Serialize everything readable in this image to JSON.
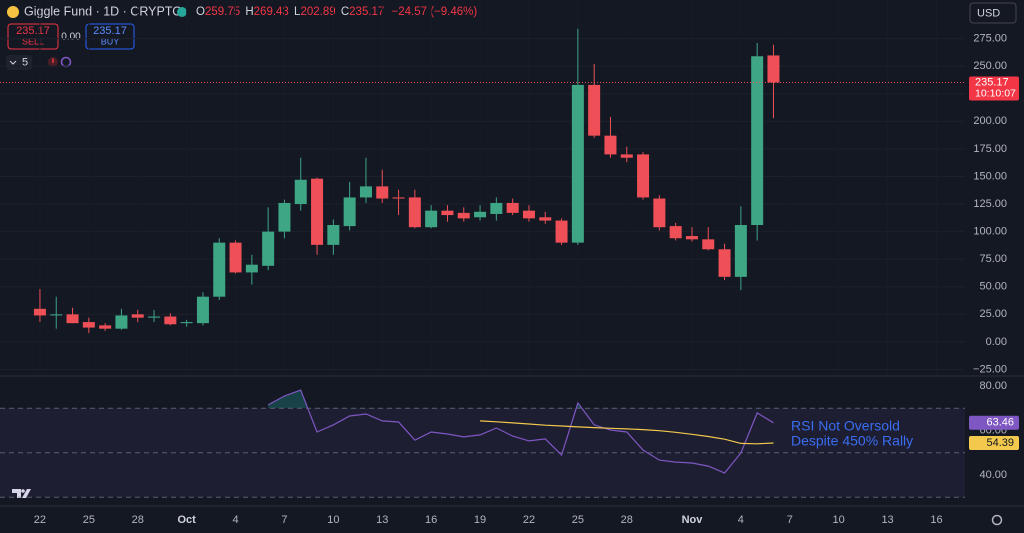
{
  "header": {
    "symbol": "Giggle Fund · 1D · CRYPTO",
    "ohlc": [
      {
        "label": "O",
        "value": "259.75"
      },
      {
        "label": "H",
        "value": "269.43"
      },
      {
        "label": "L",
        "value": "202.89"
      },
      {
        "label": "C",
        "value": "235.17"
      }
    ],
    "change": "−24.57 (−9.46%)"
  },
  "trade": {
    "sell_price": "235.17",
    "sell": "SELL",
    "spread": "0.00",
    "buy_price": "235.17",
    "buy": "BUY"
  },
  "indicators_count": "5",
  "currency": "USD",
  "chart_data": [
    {
      "type": "candlestick",
      "up_color": "#3ea585",
      "down_color": "#ef4f56",
      "grid": true,
      "xlim": [
        -2.45,
        56.75
      ],
      "xticks": [
        {
          "value": 0,
          "label": "22"
        },
        {
          "value": 3,
          "label": "25"
        },
        {
          "value": 6,
          "label": "28"
        },
        {
          "value": 9,
          "label": "Oct"
        },
        {
          "value": 12,
          "label": "4"
        },
        {
          "value": 15,
          "label": "7"
        },
        {
          "value": 18,
          "label": "10"
        },
        {
          "value": 21,
          "label": "13"
        },
        {
          "value": 24,
          "label": "16"
        },
        {
          "value": 27,
          "label": "19"
        },
        {
          "value": 30,
          "label": "22"
        },
        {
          "value": 33,
          "label": "25"
        },
        {
          "value": 36,
          "label": "28"
        },
        {
          "value": 40,
          "label": "Nov"
        },
        {
          "value": 43,
          "label": "4"
        },
        {
          "value": 46,
          "label": "7"
        },
        {
          "value": 49,
          "label": "10"
        },
        {
          "value": 52,
          "label": "13"
        },
        {
          "value": 55,
          "label": "16"
        }
      ],
      "ylim": [
        -30,
        310
      ],
      "yticks": [
        {
          "value": -25,
          "label": "−25.00"
        },
        {
          "value": 0,
          "label": "0.00"
        },
        {
          "value": 25,
          "label": "25.00"
        },
        {
          "value": 50,
          "label": "50.00"
        },
        {
          "value": 75,
          "label": "75.00"
        },
        {
          "value": 100,
          "label": "100.00"
        },
        {
          "value": 125,
          "label": "125.00"
        },
        {
          "value": 150,
          "label": "150.00"
        },
        {
          "value": 175,
          "label": "175.00"
        },
        {
          "value": 200,
          "label": "200.00"
        },
        {
          "value": 225,
          "label": "225.00"
        },
        {
          "value": 250,
          "label": "250.00"
        },
        {
          "value": 275,
          "label": "275.00"
        }
      ],
      "open": [
        30,
        24,
        25,
        18,
        15,
        12,
        25,
        22,
        23,
        17,
        17,
        41,
        90,
        63,
        69,
        100,
        125,
        148,
        88,
        105,
        131,
        141,
        131,
        131,
        104,
        119,
        117,
        113,
        116,
        126,
        119,
        113,
        110,
        90,
        233,
        187,
        170,
        170,
        130,
        105,
        96,
        93,
        84,
        59,
        106,
        259.75
      ],
      "high": [
        48,
        41,
        31,
        22,
        17,
        30,
        29,
        29,
        26,
        20,
        45,
        94,
        92,
        79,
        122,
        129,
        167,
        149,
        111,
        145,
        167,
        156,
        138,
        138,
        124,
        124,
        122,
        124,
        131,
        130,
        124,
        118,
        112,
        284,
        252,
        204,
        177,
        172,
        133,
        108,
        104,
        104,
        89,
        123,
        271,
        269.43
      ],
      "low": [
        18,
        12,
        17,
        8,
        10,
        11,
        18,
        18,
        15,
        14,
        15,
        38,
        62,
        52,
        65,
        94,
        119,
        79,
        79,
        101,
        126,
        126,
        115,
        103,
        103,
        109,
        109,
        110,
        110,
        115,
        109,
        107,
        88,
        88,
        185,
        167,
        163,
        129,
        101,
        92,
        91,
        83,
        56,
        47,
        92,
        202.89
      ],
      "close": [
        24,
        25,
        17,
        13,
        12,
        24,
        22,
        23,
        16,
        18,
        41,
        90,
        63,
        70,
        100,
        126,
        147,
        88,
        106,
        131,
        141,
        130,
        130,
        104,
        119,
        115,
        112,
        118,
        126,
        117,
        112,
        110,
        90,
        233,
        187,
        170,
        167,
        131,
        104,
        94,
        93,
        84,
        59,
        106,
        259,
        235.17
      ],
      "last_price": {
        "value": 235.17,
        "label": "235.17"
      },
      "countdown": "10:10:07"
    },
    {
      "type": "line",
      "ylim": [
        26.5,
        83.6
      ],
      "yticks": [
        {
          "value": 40,
          "label": "40.00"
        },
        {
          "value": 60,
          "label": "60.00"
        },
        {
          "value": 80,
          "label": "80.00"
        }
      ],
      "levels": [
        70,
        50,
        30
      ],
      "series": [
        {
          "color": "#7e57c2",
          "values": [
            null,
            null,
            null,
            null,
            null,
            null,
            null,
            null,
            null,
            null,
            null,
            null,
            null,
            null,
            71.5,
            75.5,
            78.2,
            59.3,
            62.5,
            66.5,
            67.4,
            64.3,
            63.8,
            55.7,
            59.3,
            58.4,
            57.1,
            58,
            61.1,
            57.5,
            55.3,
            56.2,
            49,
            72.4,
            62.5,
            60.2,
            59.3,
            51.2,
            46.7,
            45.8,
            45.4,
            44,
            40.9,
            49.9,
            67.9,
            63.46
          ],
          "last_label": "63.46"
        },
        {
          "color": "#f2c94c",
          "values": [
            null,
            null,
            null,
            null,
            null,
            null,
            null,
            null,
            null,
            null,
            null,
            null,
            null,
            null,
            null,
            null,
            null,
            null,
            null,
            null,
            null,
            null,
            null,
            null,
            null,
            null,
            null,
            64.3,
            63.9,
            63.4,
            62.9,
            62.4,
            62,
            61.6,
            61.3,
            61,
            60.7,
            60.4,
            59.9,
            59.2,
            58.3,
            57.3,
            56.1,
            54.2,
            54,
            54.39
          ],
          "last_label": "54.39"
        }
      ],
      "annotation": [
        "RSI Not Oversold",
        "Despite 450% Rally"
      ]
    }
  ]
}
